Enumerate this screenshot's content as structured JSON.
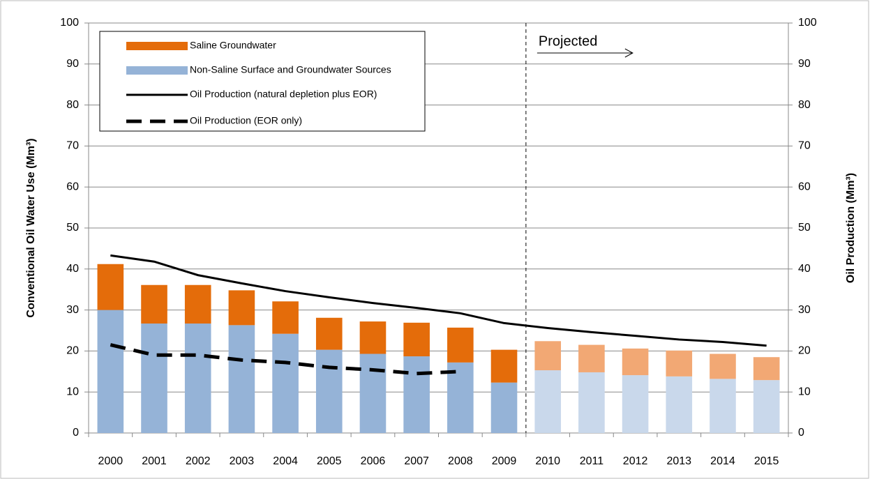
{
  "chart_data": {
    "type": "bar",
    "y_label": "Conventional Oil Water Use (Mm³)",
    "y2_label": "Oil Production (Mm³)",
    "categories": [
      "2000",
      "2001",
      "2002",
      "2003",
      "2004",
      "2005",
      "2006",
      "2007",
      "2008",
      "2009",
      "2010",
      "2011",
      "2012",
      "2013",
      "2014",
      "2015"
    ],
    "series": [
      {
        "name": "Saline Groundwater",
        "type": "bar",
        "color": "#e46c0a",
        "projected_color": "#f2a874",
        "values": [
          11.2,
          9.4,
          9.4,
          8.5,
          7.9,
          7.8,
          7.9,
          8.2,
          8.5,
          8.0,
          7.1,
          6.7,
          6.5,
          6.3,
          6.1,
          5.6
        ]
      },
      {
        "name": "Non-Saline Surface and Groundwater Sources",
        "type": "bar",
        "color": "#95b3d7",
        "projected_color": "#c9d8eb",
        "values": [
          30.0,
          26.7,
          26.7,
          26.3,
          24.2,
          20.3,
          19.3,
          18.7,
          17.2,
          12.3,
          15.3,
          14.8,
          14.1,
          13.8,
          13.2,
          12.9
        ]
      },
      {
        "name": "Oil Production (natural depletion plus EOR)",
        "type": "line",
        "axis": "y2",
        "color": "#000000",
        "dashed": false,
        "values": [
          43.3,
          41.8,
          38.5,
          36.5,
          34.6,
          33.1,
          31.7,
          30.5,
          29.2,
          26.8,
          25.6,
          24.6,
          23.7,
          22.8,
          22.2,
          21.3
        ]
      },
      {
        "name": "Oil Production (EOR only)",
        "type": "line",
        "axis": "y2",
        "color": "#000000",
        "dashed": true,
        "values": [
          21.5,
          19.0,
          19.0,
          17.8,
          17.2,
          16.0,
          15.4,
          14.5,
          15.0,
          null,
          null,
          null,
          null,
          null,
          null,
          null
        ]
      }
    ],
    "annotation": {
      "text": "Projected",
      "from": "2010"
    },
    "ylim": [
      0,
      100
    ],
    "yticks": [
      0,
      10,
      20,
      30,
      40,
      50,
      60,
      70,
      80,
      90,
      100
    ],
    "y2lim": [
      0,
      100
    ],
    "y2ticks": [
      0,
      10,
      20,
      30,
      40,
      50,
      60,
      70,
      80,
      90,
      100
    ],
    "grid": true
  }
}
